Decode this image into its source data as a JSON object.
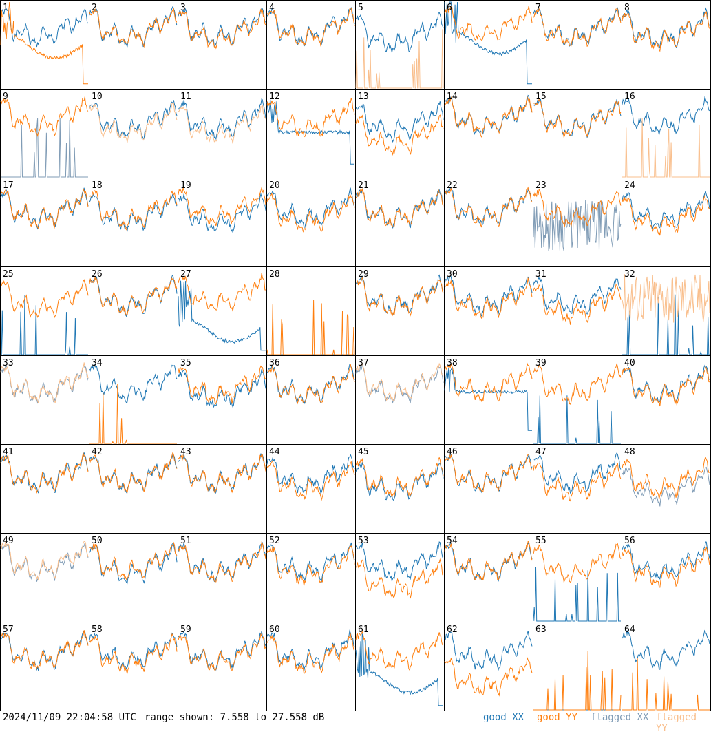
{
  "footer": {
    "timestamp": "2024/11/09 22:04:58 UTC",
    "range_text": "range shown: 7.558 to 27.558 dB"
  },
  "legend": [
    {
      "key": "good_xx",
      "word": "good",
      "pol": "XX",
      "color": "#1f77b4"
    },
    {
      "key": "good_yy",
      "word": "good",
      "pol": "YY",
      "color": "#ff7f0e"
    },
    {
      "key": "flagged_xx",
      "word": "flagged",
      "pol": "XX",
      "color": "#7f9bb5"
    },
    {
      "key": "flagged_yy",
      "word": "flagged",
      "pol": "YY",
      "color": "#f9bf8d"
    }
  ],
  "chart_data": {
    "type": "line",
    "layout": "8x8 small multiples, one panel per antenna",
    "y_range_db": [
      7.558,
      27.558
    ],
    "x_axis": "frequency channel (unlabeled)",
    "grid": false,
    "colors": {
      "good_xx": "#1f77b4",
      "good_yy": "#ff7f0e",
      "flagged_xx": "#7f9bb5",
      "flagged_yy": "#f9bf8d"
    },
    "panels": [
      {
        "label": "1",
        "xx": "good",
        "yy": "good",
        "xx_shape": "normal",
        "yy_shape": "bowl",
        "xx_level": 0.72,
        "yy_level": 0.5
      },
      {
        "label": "2",
        "xx": "good",
        "yy": "good",
        "xx_shape": "normal",
        "yy_shape": "normal",
        "xx_level": 0.72,
        "yy_level": 0.72
      },
      {
        "label": "3",
        "xx": "good",
        "yy": "good",
        "xx_shape": "normal",
        "yy_shape": "normal",
        "xx_level": 0.72,
        "yy_level": 0.7
      },
      {
        "label": "4",
        "xx": "good",
        "yy": "good",
        "xx_shape": "normal",
        "yy_shape": "normal",
        "xx_level": 0.73,
        "yy_level": 0.72
      },
      {
        "label": "5",
        "xx": "good",
        "yy": "flagged",
        "xx_shape": "normal",
        "yy_shape": "spikes",
        "xx_level": 0.65,
        "yy_level": 0.0
      },
      {
        "label": "6",
        "xx": "good",
        "yy": "good",
        "xx_shape": "bowl",
        "yy_shape": "normal",
        "xx_level": 0.55,
        "yy_level": 0.75
      },
      {
        "label": "7",
        "xx": "good",
        "yy": "good",
        "xx_shape": "normal",
        "yy_shape": "normal",
        "xx_level": 0.72,
        "yy_level": 0.71
      },
      {
        "label": "8",
        "xx": "good",
        "yy": "good",
        "xx_shape": "normal",
        "yy_shape": "normal",
        "xx_level": 0.7,
        "yy_level": 0.68
      },
      {
        "label": "9",
        "xx": "flagged",
        "yy": "good",
        "xx_shape": "spikes",
        "yy_shape": "normal",
        "xx_level": 0.0,
        "yy_level": 0.72
      },
      {
        "label": "10",
        "xx": "good",
        "yy": "flagged",
        "xx_shape": "normal",
        "yy_shape": "normal",
        "xx_level": 0.68,
        "yy_level": 0.64
      },
      {
        "label": "11",
        "xx": "good",
        "yy": "flagged",
        "xx_shape": "normal",
        "yy_shape": "normal",
        "xx_level": 0.68,
        "yy_level": 0.62
      },
      {
        "label": "12",
        "xx": "good",
        "yy": "good",
        "xx_shape": "flat",
        "yy_shape": "normal",
        "xx_level": 0.52,
        "yy_level": 0.7
      },
      {
        "label": "13",
        "xx": "good",
        "yy": "good",
        "xx_shape": "normal",
        "yy_shape": "normal",
        "xx_level": 0.66,
        "yy_level": 0.5
      },
      {
        "label": "14",
        "xx": "good",
        "yy": "good",
        "xx_shape": "normal",
        "yy_shape": "normal",
        "xx_level": 0.72,
        "yy_level": 0.72
      },
      {
        "label": "15",
        "xx": "good",
        "yy": "good",
        "xx_shape": "normal",
        "yy_shape": "normal",
        "xx_level": 0.7,
        "yy_level": 0.69
      },
      {
        "label": "16",
        "xx": "good",
        "yy": "flagged",
        "xx_shape": "normal",
        "yy_shape": "spikes",
        "xx_level": 0.72,
        "yy_level": 0.0
      },
      {
        "label": "17",
        "xx": "good",
        "yy": "good",
        "xx_shape": "normal",
        "yy_shape": "normal",
        "xx_level": 0.68,
        "yy_level": 0.68
      },
      {
        "label": "18",
        "xx": "good",
        "yy": "good",
        "xx_shape": "normal",
        "yy_shape": "normal",
        "xx_level": 0.64,
        "yy_level": 0.67
      },
      {
        "label": "19",
        "xx": "good",
        "yy": "good",
        "xx_shape": "normal",
        "yy_shape": "normal",
        "xx_level": 0.62,
        "yy_level": 0.7
      },
      {
        "label": "20",
        "xx": "good",
        "yy": "good",
        "xx_shape": "normal",
        "yy_shape": "normal",
        "xx_level": 0.68,
        "yy_level": 0.63
      },
      {
        "label": "21",
        "xx": "good",
        "yy": "good",
        "xx_shape": "normal",
        "yy_shape": "normal",
        "xx_level": 0.68,
        "yy_level": 0.68
      },
      {
        "label": "22",
        "xx": "good",
        "yy": "good",
        "xx_shape": "normal",
        "yy_shape": "normal",
        "xx_level": 0.7,
        "yy_level": 0.7
      },
      {
        "label": "23",
        "xx": "flagged",
        "yy": "good",
        "xx_shape": "noisy",
        "yy_shape": "normal",
        "xx_level": 0.35,
        "yy_level": 0.68
      },
      {
        "label": "24",
        "xx": "good",
        "yy": "good",
        "xx_shape": "normal",
        "yy_shape": "normal",
        "xx_level": 0.66,
        "yy_level": 0.6
      },
      {
        "label": "25",
        "xx": "good",
        "yy": "good",
        "xx_shape": "spikes",
        "yy_shape": "normal",
        "xx_level": 0.0,
        "yy_level": 0.66
      },
      {
        "label": "26",
        "xx": "good",
        "yy": "good",
        "xx_shape": "normal",
        "yy_shape": "normal",
        "xx_level": 0.7,
        "yy_level": 0.7
      },
      {
        "label": "27",
        "xx": "good",
        "yy": "good",
        "xx_shape": "bowl",
        "yy_shape": "normal",
        "xx_level": 0.3,
        "yy_level": 0.72
      },
      {
        "label": "28",
        "xx": "good",
        "yy": "good",
        "xx_shape": "flatline",
        "yy_shape": "spikes",
        "xx_level": 0.0,
        "yy_level": 0.0
      },
      {
        "label": "29",
        "xx": "good",
        "yy": "good",
        "xx_shape": "normal",
        "yy_shape": "normal",
        "xx_level": 0.7,
        "yy_level": 0.68
      },
      {
        "label": "30",
        "xx": "good",
        "yy": "good",
        "xx_shape": "normal",
        "yy_shape": "normal",
        "xx_level": 0.7,
        "yy_level": 0.66
      },
      {
        "label": "31",
        "xx": "good",
        "yy": "good",
        "xx_shape": "normal",
        "yy_shape": "normal",
        "xx_level": 0.7,
        "yy_level": 0.6
      },
      {
        "label": "32",
        "xx": "good",
        "yy": "flagged",
        "xx_shape": "spikes",
        "yy_shape": "noisy",
        "xx_level": 0.0,
        "yy_level": 0.55
      },
      {
        "label": "33",
        "xx": "flagged",
        "yy": "flagged",
        "xx_shape": "normal",
        "yy_shape": "normal",
        "xx_level": 0.7,
        "yy_level": 0.71
      },
      {
        "label": "34",
        "xx": "good",
        "yy": "good",
        "xx_shape": "normal",
        "yy_shape": "spikes",
        "xx_level": 0.72,
        "yy_level": 0.0
      },
      {
        "label": "35",
        "xx": "good",
        "yy": "good",
        "xx_shape": "normal",
        "yy_shape": "normal",
        "xx_level": 0.64,
        "yy_level": 0.7
      },
      {
        "label": "36",
        "xx": "good",
        "yy": "good",
        "xx_shape": "normal",
        "yy_shape": "normal",
        "xx_level": 0.7,
        "yy_level": 0.69
      },
      {
        "label": "37",
        "xx": "flagged",
        "yy": "flagged",
        "xx_shape": "normal",
        "yy_shape": "normal",
        "xx_level": 0.7,
        "yy_level": 0.72
      },
      {
        "label": "38",
        "xx": "good",
        "yy": "good",
        "xx_shape": "flat",
        "yy_shape": "normal",
        "xx_level": 0.6,
        "yy_level": 0.72
      },
      {
        "label": "39",
        "xx": "good",
        "yy": "good",
        "xx_shape": "spikes",
        "yy_shape": "normal",
        "xx_level": 0.0,
        "yy_level": 0.7
      },
      {
        "label": "40",
        "xx": "good",
        "yy": "good",
        "xx_shape": "normal",
        "yy_shape": "normal",
        "xx_level": 0.7,
        "yy_level": 0.68
      },
      {
        "label": "41",
        "xx": "good",
        "yy": "good",
        "xx_shape": "normal",
        "yy_shape": "normal",
        "xx_level": 0.7,
        "yy_level": 0.7
      },
      {
        "label": "42",
        "xx": "good",
        "yy": "good",
        "xx_shape": "normal",
        "yy_shape": "normal",
        "xx_level": 0.7,
        "yy_level": 0.7
      },
      {
        "label": "43",
        "xx": "good",
        "yy": "good",
        "xx_shape": "normal",
        "yy_shape": "normal",
        "xx_level": 0.7,
        "yy_level": 0.7
      },
      {
        "label": "44",
        "xx": "good",
        "yy": "good",
        "xx_shape": "normal",
        "yy_shape": "normal",
        "xx_level": 0.68,
        "yy_level": 0.62
      },
      {
        "label": "45",
        "xx": "good",
        "yy": "good",
        "xx_shape": "normal",
        "yy_shape": "normal",
        "xx_level": 0.6,
        "yy_level": 0.64
      },
      {
        "label": "46",
        "xx": "good",
        "yy": "good",
        "xx_shape": "normal",
        "yy_shape": "normal",
        "xx_level": 0.7,
        "yy_level": 0.7
      },
      {
        "label": "47",
        "xx": "good",
        "yy": "good",
        "xx_shape": "normal",
        "yy_shape": "normal",
        "xx_level": 0.7,
        "yy_level": 0.6
      },
      {
        "label": "48",
        "xx": "flagged",
        "yy": "good",
        "xx_shape": "normal",
        "yy_shape": "normal",
        "xx_level": 0.55,
        "yy_level": 0.64
      },
      {
        "label": "49",
        "xx": "flagged",
        "yy": "flagged",
        "xx_shape": "normal",
        "yy_shape": "normal",
        "xx_level": 0.7,
        "yy_level": 0.72
      },
      {
        "label": "50",
        "xx": "good",
        "yy": "good",
        "xx_shape": "normal",
        "yy_shape": "normal",
        "xx_level": 0.68,
        "yy_level": 0.7
      },
      {
        "label": "51",
        "xx": "good",
        "yy": "good",
        "xx_shape": "normal",
        "yy_shape": "normal",
        "xx_level": 0.7,
        "yy_level": 0.69
      },
      {
        "label": "52",
        "xx": "good",
        "yy": "good",
        "xx_shape": "normal",
        "yy_shape": "normal",
        "xx_level": 0.7,
        "yy_level": 0.66
      },
      {
        "label": "53",
        "xx": "good",
        "yy": "good",
        "xx_shape": "normal",
        "yy_shape": "normal",
        "xx_level": 0.7,
        "yy_level": 0.5
      },
      {
        "label": "54",
        "xx": "good",
        "yy": "good",
        "xx_shape": "normal",
        "yy_shape": "normal",
        "xx_level": 0.7,
        "yy_level": 0.7
      },
      {
        "label": "55",
        "xx": "good",
        "yy": "good",
        "xx_shape": "spikes",
        "yy_shape": "normal",
        "xx_level": 0.0,
        "yy_level": 0.68
      },
      {
        "label": "56",
        "xx": "good",
        "yy": "good",
        "xx_shape": "normal",
        "yy_shape": "normal",
        "xx_level": 0.7,
        "yy_level": 0.64
      },
      {
        "label": "57",
        "xx": "good",
        "yy": "good",
        "xx_shape": "normal",
        "yy_shape": "normal",
        "xx_level": 0.7,
        "yy_level": 0.7
      },
      {
        "label": "58",
        "xx": "good",
        "yy": "good",
        "xx_shape": "normal",
        "yy_shape": "normal",
        "xx_level": 0.7,
        "yy_level": 0.66
      },
      {
        "label": "59",
        "xx": "good",
        "yy": "good",
        "xx_shape": "normal",
        "yy_shape": "normal",
        "xx_level": 0.7,
        "yy_level": 0.68
      },
      {
        "label": "60",
        "xx": "good",
        "yy": "good",
        "xx_shape": "normal",
        "yy_shape": "normal",
        "xx_level": 0.7,
        "yy_level": 0.66
      },
      {
        "label": "61",
        "xx": "good",
        "yy": "good",
        "xx_shape": "bowl",
        "yy_shape": "normal",
        "xx_level": 0.35,
        "yy_level": 0.7
      },
      {
        "label": "62",
        "xx": "good",
        "yy": "good",
        "xx_shape": "normal",
        "yy_shape": "normal",
        "xx_level": 0.7,
        "yy_level": 0.4
      },
      {
        "label": "63",
        "xx": "good",
        "yy": "good",
        "xx_shape": "flatline",
        "yy_shape": "spikes",
        "xx_level": 0.0,
        "yy_level": 0.0
      },
      {
        "label": "64",
        "xx": "good",
        "yy": "good",
        "xx_shape": "normal",
        "yy_shape": "spikes",
        "xx_level": 0.72,
        "yy_level": 0.0
      }
    ]
  }
}
